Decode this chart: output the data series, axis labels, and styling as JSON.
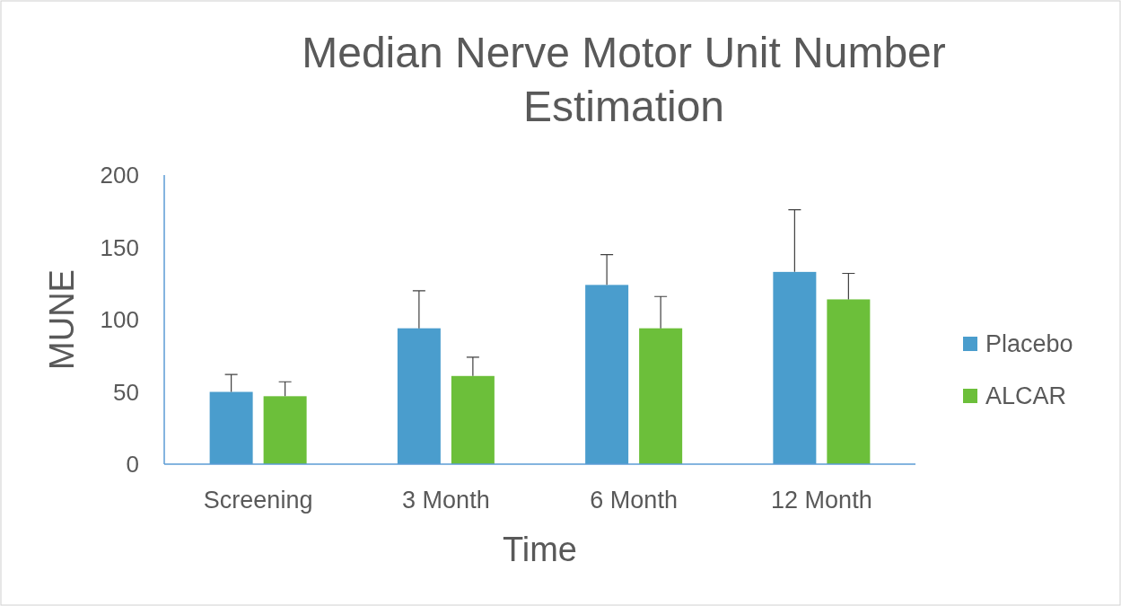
{
  "chart_data": {
    "type": "bar",
    "title": "Median Nerve Motor Unit Number Estimation",
    "xlabel": "Time",
    "ylabel": "MUNE",
    "categories": [
      "Screening",
      "3 Month",
      "6 Month",
      "12 Month"
    ],
    "series": [
      {
        "name": "Placebo",
        "color": "#4a9dcd",
        "values": [
          50,
          94,
          124,
          133
        ],
        "errors": [
          [
            50,
            62
          ],
          [
            94,
            120
          ],
          [
            124,
            145
          ],
          [
            133,
            176
          ]
        ]
      },
      {
        "name": "ALCAR",
        "color": "#6cbf3a",
        "values": [
          47,
          61,
          94,
          114
        ],
        "errors": [
          [
            47,
            57
          ],
          [
            61,
            74
          ],
          [
            94,
            116
          ],
          [
            114,
            132
          ]
        ]
      }
    ],
    "ylim": [
      0,
      200
    ],
    "yticks": [
      0,
      50,
      100,
      150,
      200
    ],
    "grid": false,
    "legend": "right"
  }
}
